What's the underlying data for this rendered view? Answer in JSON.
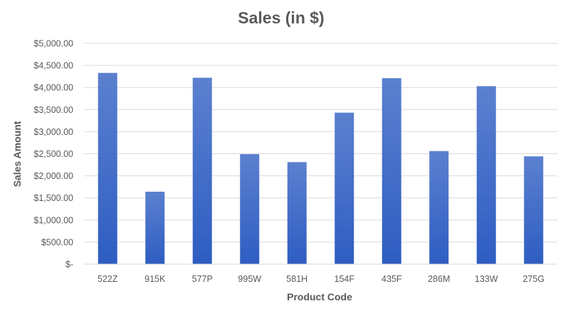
{
  "chart_data": {
    "type": "bar",
    "title": "Sales (in $)",
    "xlabel": "Product Code",
    "ylabel": "Sales Amount",
    "categories": [
      "522Z",
      "915K",
      "577P",
      "995W",
      "581H",
      "154F",
      "435F",
      "286M",
      "133W",
      "275G"
    ],
    "values": [
      4330,
      1640,
      4220,
      2490,
      2310,
      3430,
      4210,
      2560,
      4030,
      2440
    ],
    "ylim": [
      0,
      5000
    ],
    "y_ticks": [
      0,
      500,
      1000,
      1500,
      2000,
      2500,
      3000,
      3500,
      4000,
      4500,
      5000
    ],
    "y_tick_labels": [
      "$-",
      "$500.00",
      "$1,000.00",
      "$1,500.00",
      "$2,000.00",
      "$2,500.00",
      "$3,000.00",
      "$3,500.00",
      "$4,000.00",
      "$4,500.00",
      "$5,000.00"
    ],
    "grid": true,
    "legend": "none",
    "colors": {
      "bar_top": "#5b80cf",
      "bar_bottom": "#2e5dc2",
      "text": "#595959",
      "grid": "#d9d9d9"
    }
  }
}
